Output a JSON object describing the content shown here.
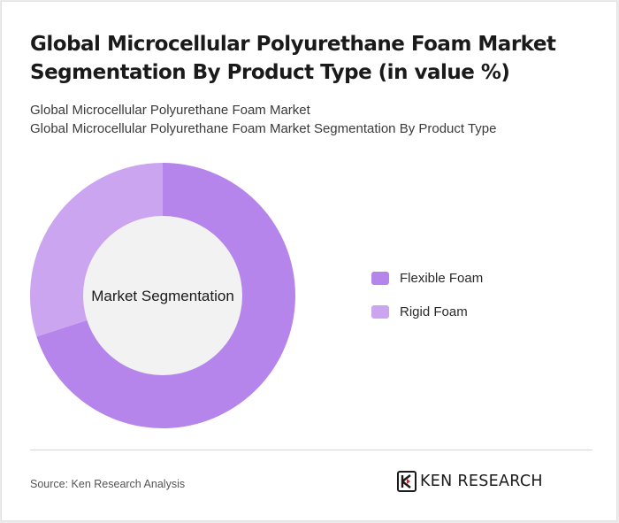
{
  "title": "Global Microcellular Polyurethane Foam Market Segmentation By Product Type (in value %)",
  "subtitles": [
    "Global Microcellular Polyurethane Foam Market",
    "Global Microcellular Polyurethane Foam Market Segmentation By Product Type"
  ],
  "chart_data": {
    "type": "pie",
    "variant": "donut",
    "center_label": "Market Segmentation",
    "categories": [
      "Flexible Foam",
      "Rigid Foam"
    ],
    "values": [
      70,
      30
    ],
    "colors": [
      "#b685ec",
      "#cca5f0"
    ],
    "legend_position": "right"
  },
  "footer": {
    "source": "Source: Ken Research Analysis",
    "logo_text": "KEN RESEARCH"
  }
}
